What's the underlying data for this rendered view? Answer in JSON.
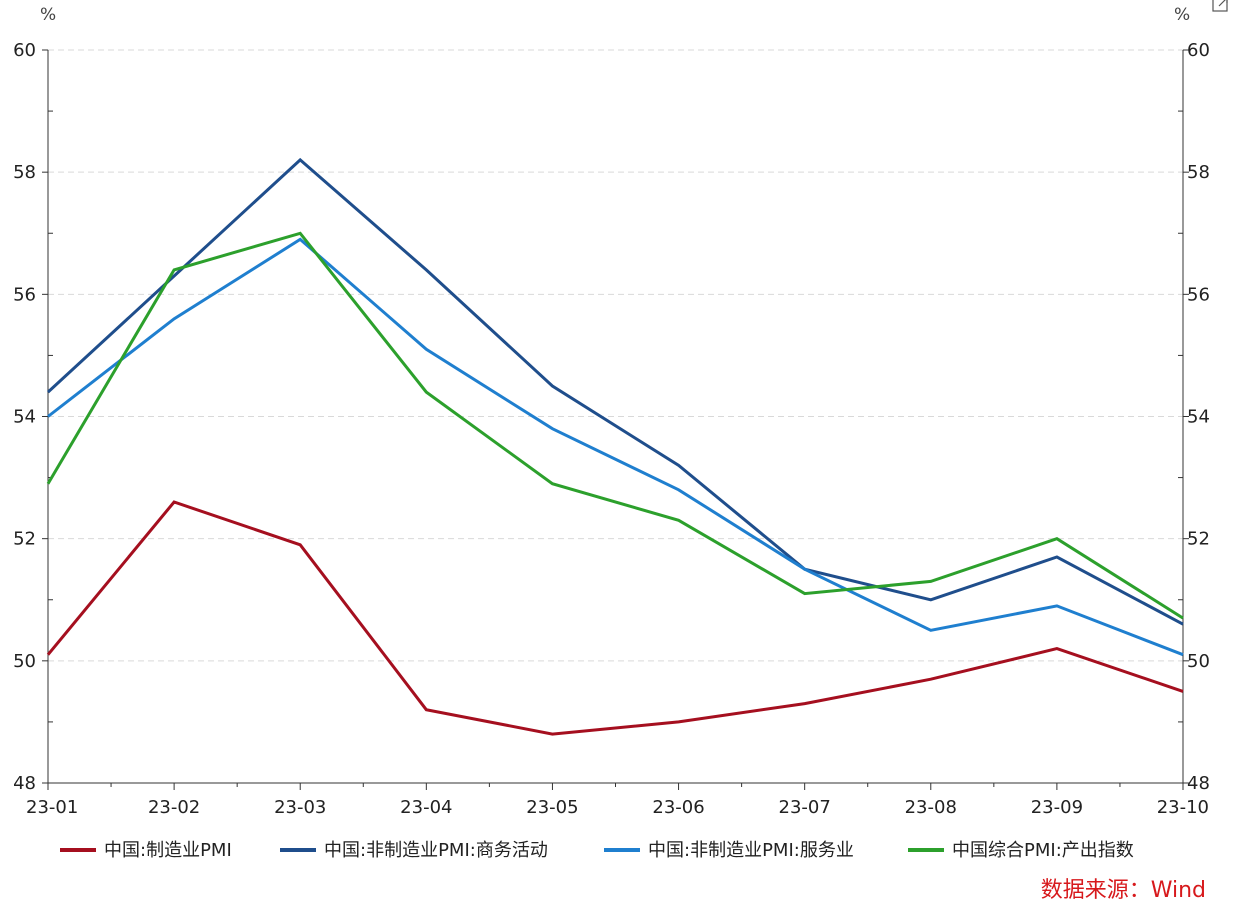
{
  "chart_data": {
    "type": "line",
    "x": [
      "23-01",
      "23-02",
      "23-03",
      "23-04",
      "23-05",
      "23-06",
      "23-07",
      "23-08",
      "23-09",
      "23-10"
    ],
    "series": [
      {
        "name": "中国:制造业PMI",
        "color": "#a50f1f",
        "values": [
          50.1,
          52.6,
          51.9,
          49.2,
          48.8,
          49.0,
          49.3,
          49.7,
          50.2,
          49.5
        ]
      },
      {
        "name": "中国:非制造业PMI:商务活动",
        "color": "#1f4e8c",
        "values": [
          54.4,
          56.3,
          58.2,
          56.4,
          54.5,
          53.2,
          51.5,
          51.0,
          51.7,
          50.6
        ]
      },
      {
        "name": "中国:非制造业PMI:服务业",
        "color": "#1f7fcf",
        "values": [
          54.0,
          55.6,
          56.9,
          55.1,
          53.8,
          52.8,
          51.5,
          50.5,
          50.9,
          50.1
        ]
      },
      {
        "name": "中国综合PMI:产出指数",
        "color": "#2ca02c",
        "values": [
          52.9,
          56.4,
          57.0,
          54.4,
          52.9,
          52.3,
          51.1,
          51.3,
          52.0,
          50.7
        ]
      }
    ],
    "ylim": [
      48,
      60
    ],
    "yticks": [
      48,
      50,
      52,
      54,
      56,
      58,
      60
    ],
    "y_unit_left": "%",
    "y_unit_right": "%",
    "grid": "horizontal dashed",
    "legend_position": "bottom",
    "source": "数据来源：Wind",
    "source_color": "#d7191c"
  }
}
